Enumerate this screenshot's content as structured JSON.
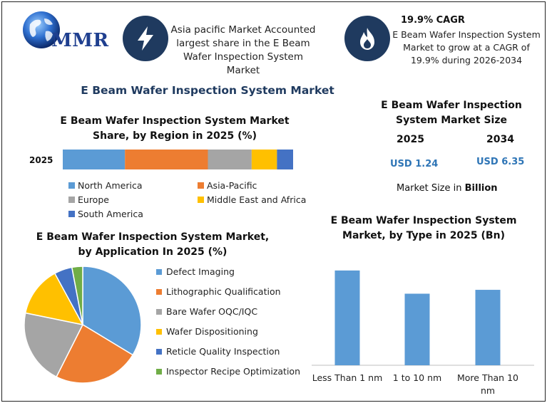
{
  "brand": {
    "name": "MMR"
  },
  "headline": {
    "text": "Asia pacific Market Accounted largest share in the E Beam Wafer Inspection System Market"
  },
  "cagr": {
    "title": "19.9% CAGR",
    "text": "E Beam Wafer Inspection System Market to grow at a CAGR of 19.9% during 2026-2034"
  },
  "main_title": "E Beam Wafer Inspection System Market",
  "market_size": {
    "title": "E Beam Wafer Inspection System Market Size",
    "year_a": "2025",
    "year_b": "2034",
    "value_a": "USD 1.24",
    "value_b": "USD 6.35",
    "note_prefix": "Market Size in ",
    "note_unit": "Billion"
  },
  "icons": {
    "headline_icon": "lightning-bolt-icon",
    "cagr_icon": "flame-icon",
    "logo_icon": "globe-icon"
  },
  "chart_data": [
    {
      "type": "bar",
      "orientation": "horizontal-stacked",
      "title": "E Beam Wafer Inspection System Market Share, by Region in 2025 (%)",
      "categories": [
        "2025"
      ],
      "series": [
        {
          "name": "North America",
          "values": [
            27
          ],
          "color": "#5b9bd5"
        },
        {
          "name": "Asia-Pacific",
          "values": [
            36
          ],
          "color": "#ed7d31"
        },
        {
          "name": "Europe",
          "values": [
            19
          ],
          "color": "#a5a5a5"
        },
        {
          "name": "Middle East and Africa",
          "values": [
            11
          ],
          "color": "#ffc000"
        },
        {
          "name": "South America",
          "values": [
            7
          ],
          "color": "#4472c4"
        }
      ],
      "legend_position": "bottom"
    },
    {
      "type": "pie",
      "title": "E Beam Wafer Inspection System Market, by Application In 2025 (%)",
      "categories": [
        "Defect Imaging",
        "Lithographic Qualification",
        "Bare Wafer OQC/IQC",
        "Wafer Dispositioning",
        "Reticle Quality Inspection",
        "Inspector Recipe Optimization"
      ],
      "values": [
        34,
        24,
        21,
        14,
        5,
        3
      ],
      "colors": [
        "#5b9bd5",
        "#ed7d31",
        "#a5a5a5",
        "#ffc000",
        "#4472c4",
        "#70ad47"
      ],
      "legend_position": "right"
    },
    {
      "type": "bar",
      "title": "E Beam Wafer Inspection System Market, by Type in 2025 (Bn)",
      "categories": [
        "Less Than 1 nm",
        "1 to 10 nm",
        "More Than 10 nm"
      ],
      "values": [
        0.49,
        0.37,
        0.39
      ],
      "color": "#5b9bd5",
      "ylim": [
        0,
        0.6
      ],
      "grid": false
    }
  ]
}
